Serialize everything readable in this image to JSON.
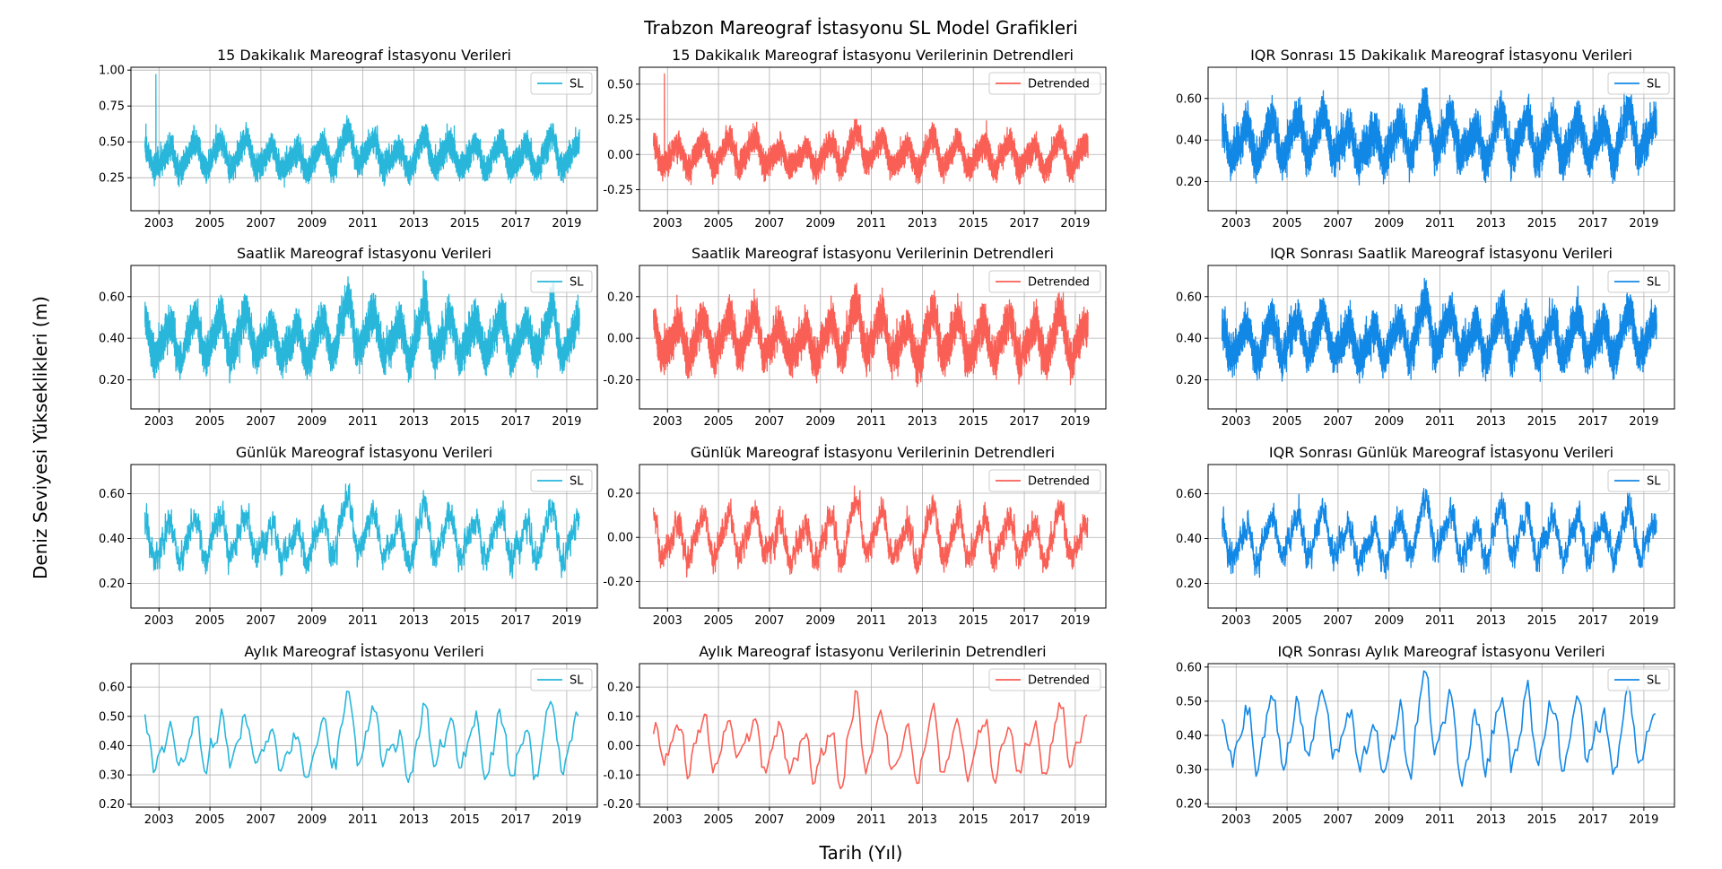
{
  "figure": {
    "title": "Trabzon Mareograf İstasyonu SL Model Grafikleri",
    "xlabel": "Tarih (Yıl)",
    "ylabel": "Deniz Seviyesi Yükseklikleri (m)"
  },
  "colors": {
    "sl": "#28b7db",
    "detrended": "#fa5f55",
    "iqr": "#1288e6"
  },
  "chart_data": [
    {
      "type": "line",
      "title": "15 Dakikalık Mareograf İstasyonu Verileri",
      "legend": "SL",
      "legend_loc": "upper right",
      "grid": true,
      "kind": "sl",
      "res": "15min",
      "xlim": [
        2001.9,
        2020.2
      ],
      "ylim": [
        0.02,
        1.02
      ],
      "yticks": [
        0.25,
        0.5,
        0.75,
        1.0
      ],
      "ydec": 2,
      "xticks": [
        2003,
        2005,
        2007,
        2009,
        2011,
        2013,
        2015,
        2017,
        2019
      ]
    },
    {
      "type": "line",
      "title": "15 Dakikalık Mareograf İstasyonu Verilerinin Detrendleri",
      "legend": "Detrended",
      "legend_loc": "upper right",
      "grid": true,
      "kind": "detrended",
      "res": "15min",
      "xlim": [
        2001.9,
        2020.2
      ],
      "ylim": [
        -0.4,
        0.62
      ],
      "yticks": [
        -0.25,
        0.0,
        0.25,
        0.5
      ],
      "ydec": 2,
      "xticks": [
        2003,
        2005,
        2007,
        2009,
        2011,
        2013,
        2015,
        2017,
        2019
      ]
    },
    {
      "type": "line",
      "title": "IQR Sonrası 15 Dakikalık Mareograf İstasyonu Verileri",
      "legend": "SL",
      "legend_loc": "upper right",
      "grid": true,
      "kind": "iqr",
      "res": "15min",
      "xlim": [
        2001.9,
        2020.2
      ],
      "ylim": [
        0.06,
        0.75
      ],
      "yticks": [
        0.2,
        0.4,
        0.6
      ],
      "ydec": 2,
      "xticks": [
        2003,
        2005,
        2007,
        2009,
        2011,
        2013,
        2015,
        2017,
        2019
      ]
    },
    {
      "type": "line",
      "title": "Saatlik Mareograf İstasyonu Verileri",
      "legend": "SL",
      "legend_loc": "upper right",
      "grid": true,
      "kind": "sl",
      "res": "hourly",
      "xlim": [
        2001.9,
        2020.2
      ],
      "ylim": [
        0.06,
        0.75
      ],
      "yticks": [
        0.2,
        0.4,
        0.6
      ],
      "ydec": 2,
      "xticks": [
        2003,
        2005,
        2007,
        2009,
        2011,
        2013,
        2015,
        2017,
        2019
      ]
    },
    {
      "type": "line",
      "title": "Saatlik Mareograf İstasyonu Verilerinin Detrendleri",
      "legend": "Detrended",
      "legend_loc": "upper right",
      "grid": true,
      "kind": "detrended",
      "res": "hourly",
      "xlim": [
        2001.9,
        2020.2
      ],
      "ylim": [
        -0.34,
        0.35
      ],
      "yticks": [
        -0.2,
        0.0,
        0.2
      ],
      "ydec": 2,
      "xticks": [
        2003,
        2005,
        2007,
        2009,
        2011,
        2013,
        2015,
        2017,
        2019
      ]
    },
    {
      "type": "line",
      "title": "IQR Sonrası Saatlik Mareograf İstasyonu Verileri",
      "legend": "SL",
      "legend_loc": "upper right",
      "grid": true,
      "kind": "iqr",
      "res": "hourly",
      "xlim": [
        2001.9,
        2020.2
      ],
      "ylim": [
        0.06,
        0.75
      ],
      "yticks": [
        0.2,
        0.4,
        0.6
      ],
      "ydec": 2,
      "xticks": [
        2003,
        2005,
        2007,
        2009,
        2011,
        2013,
        2015,
        2017,
        2019
      ]
    },
    {
      "type": "line",
      "title": "Günlük Mareograf İstasyonu Verileri",
      "legend": "SL",
      "legend_loc": "upper right",
      "grid": true,
      "kind": "sl",
      "res": "daily",
      "xlim": [
        2001.9,
        2020.2
      ],
      "ylim": [
        0.09,
        0.73
      ],
      "yticks": [
        0.2,
        0.4,
        0.6
      ],
      "ydec": 2,
      "xticks": [
        2003,
        2005,
        2007,
        2009,
        2011,
        2013,
        2015,
        2017,
        2019
      ]
    },
    {
      "type": "line",
      "title": "Günlük Mareograf İstasyonu Verilerinin Detrendleri",
      "legend": "Detrended",
      "legend_loc": "upper right",
      "grid": true,
      "kind": "detrended",
      "res": "daily",
      "xlim": [
        2001.9,
        2020.2
      ],
      "ylim": [
        -0.32,
        0.33
      ],
      "yticks": [
        -0.2,
        0.0,
        0.2
      ],
      "ydec": 2,
      "xticks": [
        2003,
        2005,
        2007,
        2009,
        2011,
        2013,
        2015,
        2017,
        2019
      ]
    },
    {
      "type": "line",
      "title": "IQR Sonrası Günlük Mareograf İstasyonu Verileri",
      "legend": "SL",
      "legend_loc": "upper right",
      "grid": true,
      "kind": "iqr",
      "res": "daily",
      "xlim": [
        2001.9,
        2020.2
      ],
      "ylim": [
        0.09,
        0.73
      ],
      "yticks": [
        0.2,
        0.4,
        0.6
      ],
      "ydec": 2,
      "xticks": [
        2003,
        2005,
        2007,
        2009,
        2011,
        2013,
        2015,
        2017,
        2019
      ]
    },
    {
      "type": "line",
      "title": "Aylık Mareograf İstasyonu Verileri",
      "legend": "SL",
      "legend_loc": "upper right",
      "grid": true,
      "kind": "sl",
      "res": "monthly",
      "xlim": [
        2001.9,
        2020.2
      ],
      "ylim": [
        0.19,
        0.68
      ],
      "yticks": [
        0.2,
        0.3,
        0.4,
        0.5,
        0.6
      ],
      "ydec": 2,
      "xticks": [
        2003,
        2005,
        2007,
        2009,
        2011,
        2013,
        2015,
        2017,
        2019
      ]
    },
    {
      "type": "line",
      "title": "Aylık Mareograf İstasyonu Verilerinin Detrendleri",
      "legend": "Detrended",
      "legend_loc": "upper right",
      "grid": true,
      "kind": "detrended",
      "res": "monthly",
      "xlim": [
        2001.9,
        2020.2
      ],
      "ylim": [
        -0.21,
        0.28
      ],
      "yticks": [
        -0.2,
        -0.1,
        0.0,
        0.1,
        0.2
      ],
      "ydec": 2,
      "xticks": [
        2003,
        2005,
        2007,
        2009,
        2011,
        2013,
        2015,
        2017,
        2019
      ]
    },
    {
      "type": "line",
      "title": "IQR Sonrası Aylık Mareograf İstasyonu Verileri",
      "legend": "SL",
      "legend_loc": "upper right",
      "grid": true,
      "kind": "iqr",
      "res": "monthly",
      "xlim": [
        2001.9,
        2020.2
      ],
      "ylim": [
        0.19,
        0.61
      ],
      "yticks": [
        0.2,
        0.3,
        0.4,
        0.5,
        0.6
      ],
      "ydec": 2,
      "xticks": [
        2003,
        2005,
        2007,
        2009,
        2011,
        2013,
        2015,
        2017,
        2019
      ]
    }
  ]
}
